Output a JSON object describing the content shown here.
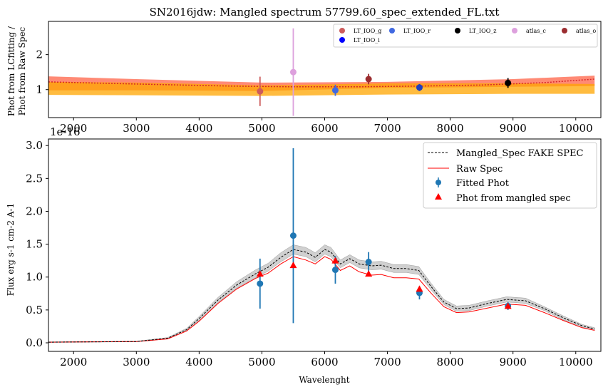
{
  "chart_data": [
    {
      "type": "scatter",
      "title": "SN2016jdw: Mangled spectrum 57799.60_spec_extended_FL.txt",
      "xlabel": "",
      "ylabel_line1": "Phot from LCfitting /",
      "ylabel_line2": "Phot from Raw Spec",
      "xlim": [
        1600,
        10400
      ],
      "ylim": [
        0.2,
        2.95
      ],
      "xticks": [
        2000,
        3000,
        4000,
        5000,
        6000,
        7000,
        8000,
        9000,
        10000
      ],
      "xtick_labels": [
        "2000",
        "3000",
        "4000",
        "5000",
        "6000",
        "7000",
        "8000",
        "9000",
        "10000"
      ],
      "yticks": [
        1,
        2
      ],
      "ytick_labels": [
        "1",
        "2"
      ],
      "overlap_label": "1e-16",
      "bands": [
        {
          "name": "upper band",
          "color": "#ff6347",
          "x": [
            1600,
            3000,
            5000,
            7000,
            9000,
            10300
          ],
          "lower": [
            0.98,
            0.98,
            0.96,
            1.05,
            1.08,
            1.1
          ],
          "upper": [
            1.38,
            1.3,
            1.2,
            1.22,
            1.3,
            1.4
          ]
        },
        {
          "name": "lower band",
          "color": "#ffa500",
          "x": [
            1600,
            3000,
            5000,
            7000,
            9000,
            10300
          ],
          "lower": [
            0.85,
            0.84,
            0.82,
            0.86,
            0.88,
            0.88
          ],
          "upper": [
            1.22,
            1.2,
            1.12,
            1.18,
            1.18,
            1.16
          ]
        }
      ],
      "ratio_line": {
        "color": "#d62728",
        "x": [
          1600,
          3000,
          4500,
          5500,
          6500,
          7500,
          8500,
          9500,
          10300
        ],
        "y": [
          1.22,
          1.16,
          1.1,
          1.08,
          1.08,
          1.1,
          1.13,
          1.2,
          1.3
        ]
      },
      "series": [
        {
          "name": "LT_IOO_g",
          "color": "#cd5c5c",
          "x": [
            4970
          ],
          "y": [
            0.95
          ],
          "yerr": [
            0.42
          ]
        },
        {
          "name": "LT_IOO_i",
          "color": "#0000ff",
          "x": [],
          "y": [],
          "yerr": []
        },
        {
          "name": "LT_IOO_r",
          "color": "#4169e1",
          "x": [
            6170
          ],
          "y": [
            0.98
          ],
          "yerr": [
            0.16
          ]
        },
        {
          "name": "LT_IOO_z",
          "color": "#000000",
          "x": [
            8920
          ],
          "y": [
            1.19
          ],
          "yerr": [
            0.14
          ]
        },
        {
          "name": "atlas_c",
          "color": "#dda0dd",
          "x": [
            5500
          ],
          "y": [
            1.5
          ],
          "yerr": [
            1.25
          ]
        },
        {
          "name": "atlas_o",
          "color": "#9b2d30",
          "x": [
            6700
          ],
          "y": [
            1.3
          ],
          "yerr": [
            0.15
          ]
        },
        {
          "name": "phot",
          "color": "#1f3fbf",
          "x": [
            7510
          ],
          "y": [
            1.06
          ],
          "yerr": [
            0.1
          ]
        }
      ],
      "legend_position": "top-right",
      "legend_columns": [
        [
          "LT_IOO_g",
          "LT_IOO_i"
        ],
        [
          "LT_IOO_r"
        ],
        [
          "LT_IOO_z"
        ],
        [
          "atlas_c"
        ],
        [
          "atlas_o"
        ]
      ]
    },
    {
      "type": "line",
      "title": "",
      "xlabel": "Wavelenght",
      "ylabel": "Flux erg s-1 cm-2 A-1",
      "xlim": [
        1600,
        10400
      ],
      "ylim": [
        -0.13,
        3.1
      ],
      "xticks": [
        2000,
        3000,
        4000,
        5000,
        6000,
        7000,
        8000,
        9000,
        10000
      ],
      "xtick_labels": [
        "2000",
        "3000",
        "4000",
        "5000",
        "6000",
        "7000",
        "8000",
        "9000",
        "10000"
      ],
      "yticks": [
        0.0,
        0.5,
        1.0,
        1.5,
        2.0,
        2.5,
        3.0
      ],
      "ytick_labels": [
        "0.0",
        "0.5",
        "1.0",
        "1.5",
        "2.0",
        "2.5",
        "3.0"
      ],
      "mangled_spec": {
        "name": "Mangled_Spec FAKE SPEC",
        "color": "#000000",
        "x": [
          1600,
          3000,
          3500,
          3800,
          4000,
          4300,
          4600,
          4900,
          5100,
          5300,
          5500,
          5700,
          5850,
          6000,
          6100,
          6250,
          6400,
          6550,
          6750,
          6900,
          7100,
          7300,
          7500,
          7700,
          7900,
          8100,
          8300,
          8600,
          8900,
          9200,
          9500,
          9800,
          10100,
          10300
        ],
        "y": [
          0.01,
          0.02,
          0.07,
          0.2,
          0.37,
          0.65,
          0.88,
          1.05,
          1.15,
          1.3,
          1.42,
          1.38,
          1.3,
          1.42,
          1.38,
          1.2,
          1.28,
          1.2,
          1.17,
          1.18,
          1.13,
          1.13,
          1.1,
          0.85,
          0.62,
          0.52,
          0.53,
          0.6,
          0.66,
          0.64,
          0.52,
          0.38,
          0.26,
          0.21
        ],
        "band_halfwidth": [
          0.005,
          0.005,
          0.01,
          0.02,
          0.03,
          0.04,
          0.05,
          0.06,
          0.06,
          0.07,
          0.07,
          0.07,
          0.07,
          0.07,
          0.07,
          0.06,
          0.06,
          0.06,
          0.06,
          0.06,
          0.06,
          0.06,
          0.06,
          0.05,
          0.04,
          0.04,
          0.04,
          0.04,
          0.04,
          0.04,
          0.03,
          0.03,
          0.02,
          0.02
        ]
      },
      "raw_spec": {
        "name": "Raw Spec",
        "color": "#ff0000",
        "x": [
          1600,
          3000,
          3500,
          3800,
          4000,
          4300,
          4600,
          4900,
          5100,
          5300,
          5500,
          5700,
          5850,
          6000,
          6100,
          6250,
          6400,
          6550,
          6750,
          6900,
          7100,
          7300,
          7500,
          7700,
          7900,
          8100,
          8300,
          8600,
          8900,
          9200,
          9500,
          9800,
          10100,
          10300
        ],
        "y": [
          0.01,
          0.02,
          0.06,
          0.18,
          0.33,
          0.6,
          0.82,
          0.98,
          1.06,
          1.2,
          1.31,
          1.26,
          1.2,
          1.31,
          1.27,
          1.1,
          1.17,
          1.08,
          1.03,
          1.04,
          0.99,
          0.99,
          0.97,
          0.75,
          0.55,
          0.46,
          0.47,
          0.53,
          0.59,
          0.57,
          0.46,
          0.34,
          0.23,
          0.19
        ]
      },
      "fitted_phot": {
        "name": "Fitted Phot",
        "color": "#1f77b4",
        "x": [
          4970,
          5500,
          6170,
          6700,
          7510,
          8920
        ],
        "y": [
          0.9,
          1.63,
          1.11,
          1.23,
          0.76,
          0.56
        ],
        "yerr": [
          0.38,
          1.33,
          0.21,
          0.15,
          0.1,
          0.06
        ]
      },
      "phot_from_mangled_spec": {
        "name": "Phot from mangled spec",
        "color": "#ff0000",
        "x": [
          4970,
          5500,
          6170,
          6700,
          7510,
          8920
        ],
        "y": [
          1.05,
          1.18,
          1.25,
          1.05,
          0.82,
          0.56
        ]
      },
      "legend_position": "top-right"
    }
  ]
}
